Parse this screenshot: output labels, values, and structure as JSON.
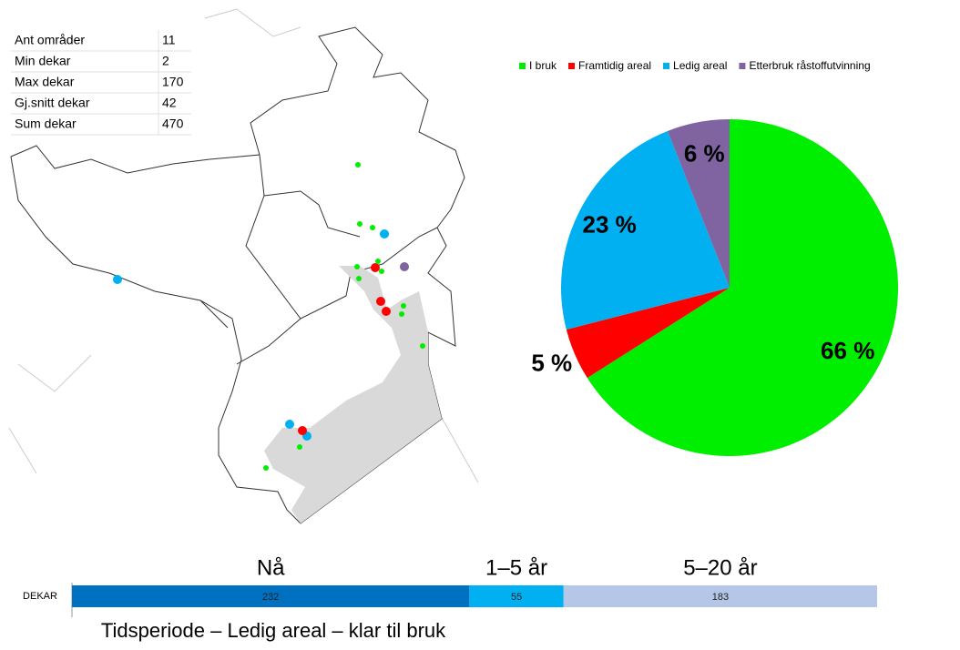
{
  "table": {
    "rows": [
      [
        "Ant områder",
        11
      ],
      [
        "Min dekar",
        2
      ],
      [
        "Max dekar",
        170
      ],
      [
        "Gj.snitt dekar",
        42
      ],
      [
        "Sum dekar",
        470
      ]
    ]
  },
  "chart_data": [
    {
      "type": "pie",
      "categories": [
        "I bruk",
        "Framtidig areal",
        "Ledig areal",
        "Etterbruk råstoffutvinning"
      ],
      "values": [
        66,
        5,
        23,
        6
      ],
      "value_labels": [
        "66 %",
        "5 %",
        "23 %",
        "6 %"
      ],
      "colors": [
        "#00ee00",
        "#ff0000",
        "#00b0f0",
        "#8064a2"
      ],
      "legend": "top"
    },
    {
      "type": "stacked_bar",
      "categories": [
        "DEKAR"
      ],
      "series": [
        {
          "name": "Nå",
          "color": "#0070c0",
          "values": [
            232
          ]
        },
        {
          "name": "1–5 år",
          "color": "#00b0f0",
          "values": [
            55
          ]
        },
        {
          "name": "5–20 år",
          "color": "#b4c7e7",
          "values": [
            183
          ]
        }
      ],
      "xlabel": "Tidsperiode – Ledig areal – klar til bruk"
    }
  ]
}
